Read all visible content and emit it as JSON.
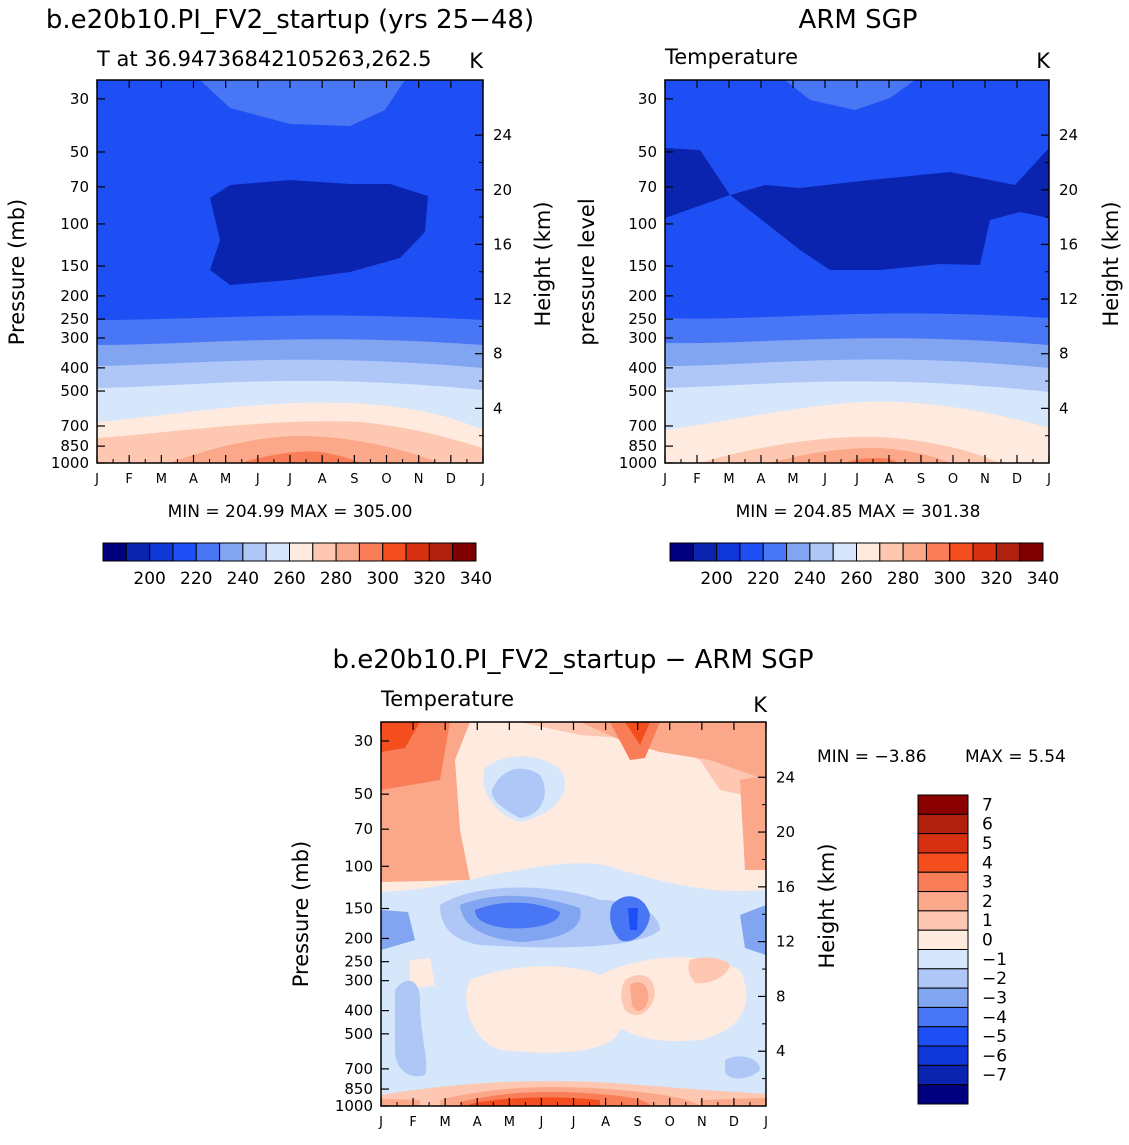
{
  "panels": [
    {
      "id": "model",
      "title": "b.e20b10.PI_FV2_startup (yrs 25−48)",
      "subtitle_left": "T at 36.94736842105263,262.5",
      "subtitle_right": "K",
      "ylabel_left": "Pressure (mb)",
      "ylabel_right": "Height (km)",
      "stats": "MIN = 204.99 MAX = 305.00"
    },
    {
      "id": "obs",
      "title": "ARM SGP",
      "subtitle_left": "Temperature",
      "subtitle_right": "K",
      "ylabel_left": "pressure level",
      "ylabel_right": "Height (km)",
      "stats": "MIN = 204.85 MAX = 301.38"
    },
    {
      "id": "diff",
      "title": "b.e20b10.PI_FV2_startup − ARM SGP",
      "subtitle_left": "Temperature",
      "subtitle_right": "K",
      "ylabel_left": "Pressure (mb)",
      "ylabel_right": "Height (km)",
      "stats_min": "MIN =  −3.86",
      "stats_max": "MAX =    5.54"
    }
  ],
  "chart_data": [
    {
      "type": "heatmap",
      "title": "b.e20b10.PI_FV2_startup (yrs 25−48)",
      "x_ticks": [
        "J",
        "F",
        "M",
        "A",
        "M",
        "J",
        "J",
        "A",
        "S",
        "O",
        "N",
        "D",
        "J"
      ],
      "y_ticks": [
        "30",
        "50",
        "70",
        "100",
        "150",
        "200",
        "250",
        "300",
        "400",
        "500",
        "700",
        "850",
        "1000"
      ],
      "y_ticks_right": [
        "24",
        "20",
        "16",
        "12",
        "8",
        "4"
      ],
      "xlabel": "",
      "ylabel": "Pressure (mb)",
      "ylabel_right": "Height (km)",
      "ylim": [
        1000,
        25
      ],
      "colorbar": {
        "labels": [
          "200",
          "220",
          "240",
          "260",
          "280",
          "300",
          "320",
          "340"
        ],
        "colors": [
          "#00007f",
          "#0a24b0",
          "#1038d8",
          "#1e4ff5",
          "#4876f5",
          "#82a5f2",
          "#aec7f7",
          "#d6e6fb",
          "#feeade",
          "#fdc7b1",
          "#fba789",
          "#f97e58",
          "#f44d1e",
          "#d63010",
          "#b0200c",
          "#7f0000"
        ]
      },
      "min": 204.99,
      "max": 305.0
    },
    {
      "type": "heatmap",
      "title": "ARM SGP",
      "x_ticks": [
        "J",
        "F",
        "M",
        "A",
        "M",
        "J",
        "J",
        "A",
        "S",
        "O",
        "N",
        "D",
        "J"
      ],
      "y_ticks": [
        "30",
        "50",
        "70",
        "100",
        "150",
        "200",
        "250",
        "300",
        "400",
        "500",
        "700",
        "850",
        "1000"
      ],
      "y_ticks_right": [
        "24",
        "20",
        "16",
        "12",
        "8",
        "4"
      ],
      "ylabel": "pressure level",
      "ylabel_right": "Height (km)",
      "ylim": [
        1000,
        25
      ],
      "colorbar": {
        "labels": [
          "200",
          "220",
          "240",
          "260",
          "280",
          "300",
          "320",
          "340"
        ],
        "colors": [
          "#00007f",
          "#0a24b0",
          "#1038d8",
          "#1e4ff5",
          "#4876f5",
          "#82a5f2",
          "#aec7f7",
          "#d6e6fb",
          "#feeade",
          "#fdc7b1",
          "#fba789",
          "#f97e58",
          "#f44d1e",
          "#d63010",
          "#b0200c",
          "#7f0000"
        ]
      },
      "min": 204.85,
      "max": 301.38
    },
    {
      "type": "heatmap",
      "title": "b.e20b10.PI_FV2_startup − ARM SGP",
      "x_ticks": [
        "J",
        "F",
        "M",
        "A",
        "M",
        "J",
        "J",
        "A",
        "S",
        "O",
        "N",
        "D",
        "J"
      ],
      "y_ticks": [
        "30",
        "50",
        "70",
        "100",
        "150",
        "200",
        "250",
        "300",
        "400",
        "500",
        "700",
        "850",
        "1000"
      ],
      "y_ticks_right": [
        "24",
        "20",
        "16",
        "12",
        "8",
        "4"
      ],
      "ylabel": "Pressure (mb)",
      "ylabel_right": "Height (km)",
      "ylim": [
        1000,
        25
      ],
      "colorbar": {
        "labels": [
          "7",
          "6",
          "5",
          "4",
          "3",
          "2",
          "1",
          "0",
          "−1",
          "−2",
          "−3",
          "−4",
          "−5",
          "−6",
          "−7"
        ],
        "colors": [
          "#8b0000",
          "#b0200c",
          "#d63010",
          "#f44d1e",
          "#f97e58",
          "#fba789",
          "#fdc7b1",
          "#feeade",
          "#d6e6fb",
          "#aec7f7",
          "#82a5f2",
          "#4876f5",
          "#1e4ff5",
          "#1038d8",
          "#0a24b0",
          "#00007f"
        ]
      },
      "min": -3.86,
      "max": 5.54
    }
  ]
}
